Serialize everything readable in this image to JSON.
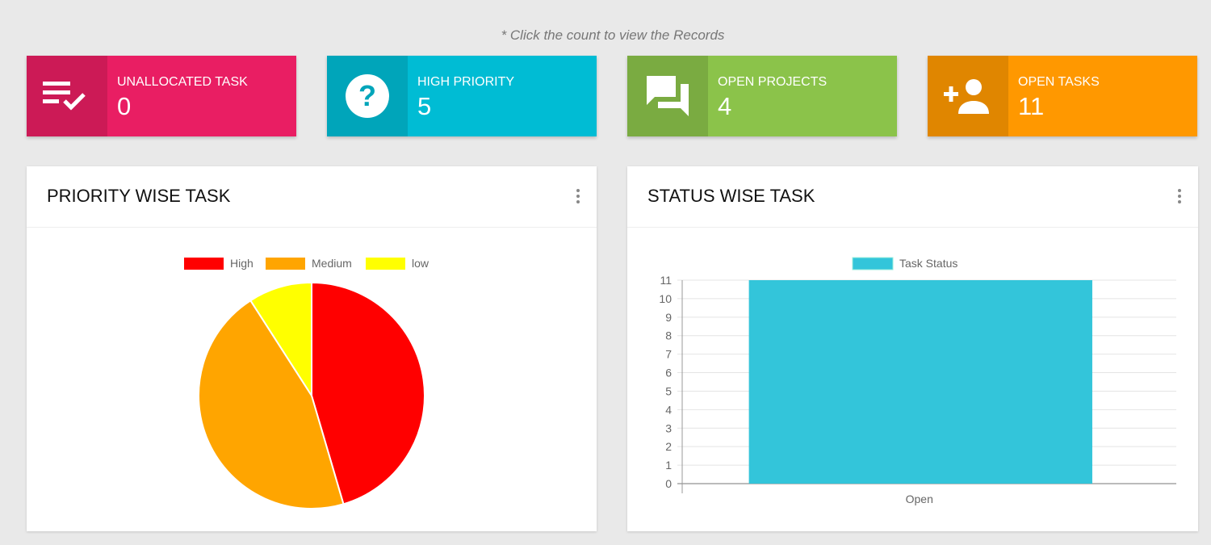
{
  "hint": "* Click the count to view the Records",
  "cards": [
    {
      "label": "UNALLOCATED TASK",
      "count": "0",
      "icon": "playlist-check-icon",
      "color": "#e91e63",
      "icon_bg": "#cc1a56"
    },
    {
      "label": "HIGH PRIORITY",
      "count": "5",
      "icon": "help-circle-icon",
      "color": "#00bcd4",
      "icon_bg": "#00a5ba"
    },
    {
      "label": "OPEN PROJECTS",
      "count": "4",
      "icon": "forum-icon",
      "color": "#8bc34a",
      "icon_bg": "#7aab41"
    },
    {
      "label": "OPEN TASKS",
      "count": "11",
      "icon": "person-add-icon",
      "color": "#ff9800",
      "icon_bg": "#e08600"
    }
  ],
  "panels": {
    "priority_title": "PRIORITY WISE TASK",
    "status_title": "STATUS WISE TASK"
  },
  "chart_data": [
    {
      "type": "pie",
      "title": "PRIORITY WISE TASK",
      "categories": [
        "High",
        "Medium",
        "low"
      ],
      "values": [
        5,
        5,
        1
      ],
      "colors": [
        "#ff0000",
        "#ffa500",
        "#ffff00"
      ],
      "legend": "top"
    },
    {
      "type": "bar",
      "title": "STATUS WISE TASK",
      "categories": [
        "Open"
      ],
      "series": [
        {
          "name": "Task Status",
          "values": [
            11
          ],
          "color": "#33c5da"
        }
      ],
      "ylim": [
        0,
        11
      ],
      "yticks": [
        0,
        1,
        2,
        3,
        4,
        5,
        6,
        7,
        8,
        9,
        10,
        11
      ],
      "grid": true,
      "legend": "top"
    }
  ]
}
